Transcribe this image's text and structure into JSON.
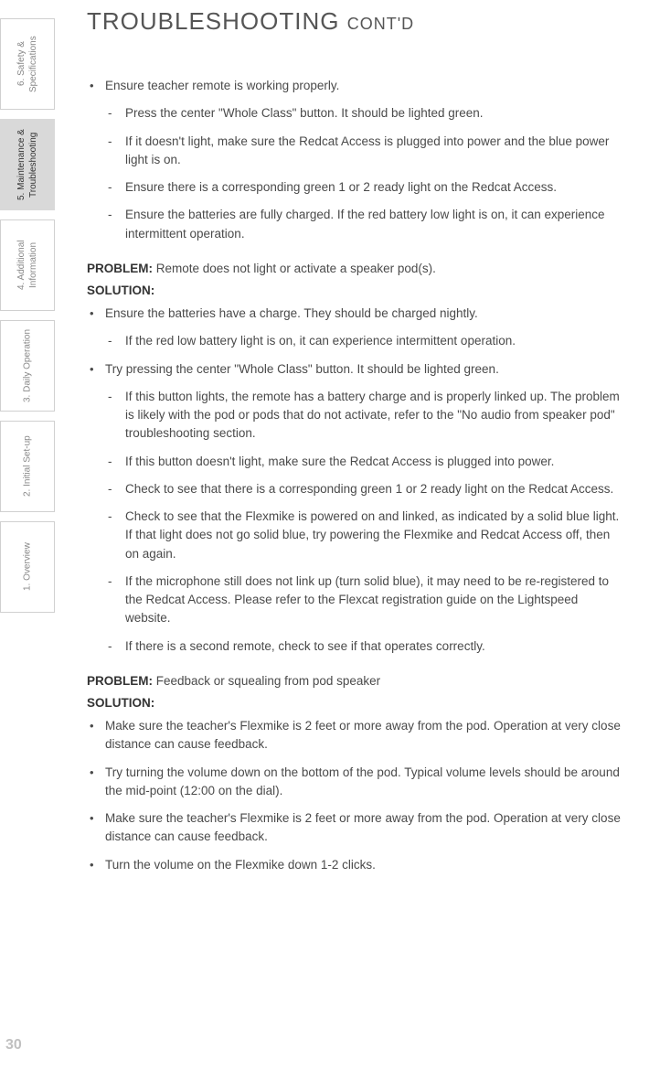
{
  "sidebar": {
    "tabs": [
      {
        "label": "6. Safety & Specifications",
        "active": false
      },
      {
        "label": "5. Maintenance & Troubleshooting",
        "active": true
      },
      {
        "label": "4. Additional Information",
        "active": false
      },
      {
        "label": "3. Daily Operation",
        "active": false
      },
      {
        "label": "2. Initial Set-up",
        "active": false
      },
      {
        "label": "1. Overview",
        "active": false
      }
    ]
  },
  "title": "TROUBLESHOOTING",
  "title_sub": "CONT'D",
  "section1": {
    "bullet": "Ensure teacher remote is working properly.",
    "subs": [
      "Press the center \"Whole Class\" button. It should be lighted green.",
      "If it doesn't light, make sure the Redcat Access is plugged into power and the blue power light is on.",
      "Ensure there is a corresponding green 1 or 2 ready light on the Redcat Access.",
      "Ensure the batteries are fully charged. If the red battery low light is on, it can experience intermittent operation."
    ]
  },
  "problem1": {
    "label": "PROBLEM:",
    "text": "Remote does not light or activate a speaker pod(s).",
    "solution_label": "SOLUTION:",
    "bullets": [
      {
        "text": "Ensure the batteries have a charge. They should be charged nightly.",
        "subs": [
          "If the red low battery light is on, it can experience intermittent operation."
        ]
      },
      {
        "text": "Try pressing the center \"Whole Class\" button. It should be lighted green.",
        "subs": [
          "If this button lights, the remote has a battery charge and is properly linked up. The problem is likely with the pod or pods that do not activate, refer to the \"No audio from speaker pod\" troubleshooting section.",
          "If this button doesn't light, make sure the Redcat Access is plugged into power.",
          "Check to see that there is a corresponding green 1 or 2 ready light on the Redcat Access.",
          "Check to see that the Flexmike is powered on and linked, as indicated by a solid blue light. If that light does not go solid blue, try powering the Flexmike and Redcat Access off, then on again.",
          "If the microphone still does not link up (turn solid blue), it may need to be re-registered to the Redcat Access. Please refer to the Flexcat registration guide on the Lightspeed website.",
          "If there is a second remote, check to see if that operates correctly."
        ]
      }
    ]
  },
  "problem2": {
    "label": "PROBLEM:",
    "text": "Feedback or squealing from pod speaker",
    "solution_label": "SOLUTION:",
    "bullets": [
      "Make sure the teacher's Flexmike is 2 feet or more away from the pod. Operation at very close distance can cause feedback.",
      "Try turning the volume down on the bottom of the pod. Typical volume levels should be around the mid-point (12:00 on the dial).",
      "Make sure the teacher's Flexmike is 2 feet or more away from the pod. Operation at very close distance can cause feedback.",
      "Turn the volume on the Flexmike down 1-2 clicks."
    ]
  },
  "page_number": "30"
}
